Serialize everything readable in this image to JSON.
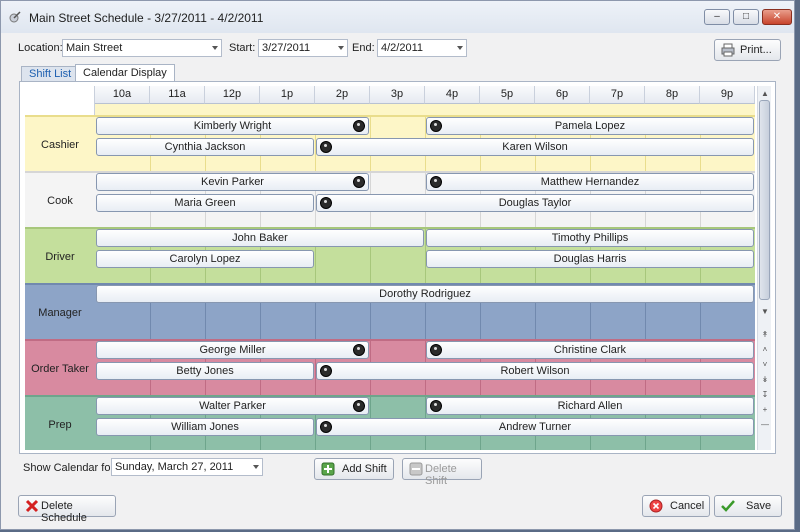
{
  "window": {
    "title": "Main Street Schedule - 3/27/2011 - 4/2/2011"
  },
  "filters": {
    "location_label": "Location:",
    "location_value": "Main Street",
    "start_label": "Start:",
    "start_value": "3/27/2011",
    "end_label": "End:",
    "end_value": "4/2/2011"
  },
  "toolbar": {
    "print_label": "Print..."
  },
  "tabs": [
    {
      "label": "Shift List"
    },
    {
      "label": "Calendar Display"
    }
  ],
  "calendar": {
    "hours": [
      "10a",
      "11a",
      "12p",
      "1p",
      "2p",
      "3p",
      "4p",
      "5p",
      "6p",
      "7p",
      "8p",
      "9p"
    ],
    "roles": [
      {
        "name": "Cashier",
        "bg": "#fdf6c7",
        "line": "#e9dd8c",
        "shifts": [
          {
            "name": "Kimberly Wright",
            "start": 0,
            "end": 5,
            "row": 0,
            "pin": "end"
          },
          {
            "name": "Pamela Lopez",
            "start": 6,
            "end": 12,
            "row": 0,
            "pin": "start"
          },
          {
            "name": "Cynthia Jackson",
            "start": 0,
            "end": 4,
            "row": 1,
            "pin": "none"
          },
          {
            "name": "Karen Wilson",
            "start": 4,
            "end": 12,
            "row": 1,
            "pin": "start"
          }
        ]
      },
      {
        "name": "Cook",
        "bg": "#f4f4f4",
        "line": "#d6d6d6",
        "shifts": [
          {
            "name": "Kevin Parker",
            "start": 0,
            "end": 5,
            "row": 0,
            "pin": "end"
          },
          {
            "name": "Matthew Hernandez",
            "start": 6,
            "end": 12,
            "row": 0,
            "pin": "start"
          },
          {
            "name": "Maria Green",
            "start": 0,
            "end": 4,
            "row": 1,
            "pin": "none"
          },
          {
            "name": "Douglas Taylor",
            "start": 4,
            "end": 12,
            "row": 1,
            "pin": "start"
          }
        ]
      },
      {
        "name": "Driver",
        "bg": "#c4df9c",
        "line": "#a7c77b",
        "shifts": [
          {
            "name": "John Baker",
            "start": 0,
            "end": 6,
            "row": 0,
            "pin": "none"
          },
          {
            "name": "Timothy Phillips",
            "start": 6,
            "end": 12,
            "row": 0,
            "pin": "none"
          },
          {
            "name": "Carolyn Lopez",
            "start": 0,
            "end": 4,
            "row": 1,
            "pin": "none"
          },
          {
            "name": "Douglas Harris",
            "start": 6,
            "end": 12,
            "row": 1,
            "pin": "none"
          }
        ]
      },
      {
        "name": "Manager",
        "bg": "#8da4c7",
        "line": "#7189ae",
        "shifts": [
          {
            "name": "Dorothy Rodriguez",
            "start": 0,
            "end": 12,
            "row": 0,
            "pin": "none"
          }
        ]
      },
      {
        "name": "Order Taker",
        "bg": "#d88aa0",
        "line": "#c06c84",
        "shifts": [
          {
            "name": "George Miller",
            "start": 0,
            "end": 5,
            "row": 0,
            "pin": "end"
          },
          {
            "name": "Christine Clark",
            "start": 6,
            "end": 12,
            "row": 0,
            "pin": "start"
          },
          {
            "name": "Betty Jones",
            "start": 0,
            "end": 4,
            "row": 1,
            "pin": "none"
          },
          {
            "name": "Robert Wilson",
            "start": 4,
            "end": 12,
            "row": 1,
            "pin": "start"
          }
        ]
      },
      {
        "name": "Prep",
        "bg": "#8dbfa8",
        "line": "#6ea58c",
        "shifts": [
          {
            "name": "Walter Parker",
            "start": 0,
            "end": 5,
            "row": 0,
            "pin": "end"
          },
          {
            "name": "Richard Allen",
            "start": 6,
            "end": 12,
            "row": 0,
            "pin": "start"
          },
          {
            "name": "William Jones",
            "start": 0,
            "end": 4,
            "row": 1,
            "pin": "none"
          },
          {
            "name": "Andrew Turner",
            "start": 4,
            "end": 12,
            "row": 1,
            "pin": "start"
          }
        ]
      }
    ]
  },
  "bottom": {
    "show_label": "Show Calendar for:",
    "show_value": "Sunday, March 27, 2011",
    "add_shift": "Add Shift",
    "delete_shift": "Delete Shift"
  },
  "footer": {
    "delete_schedule": "Delete Schedule",
    "cancel": "Cancel",
    "save": "Save"
  }
}
